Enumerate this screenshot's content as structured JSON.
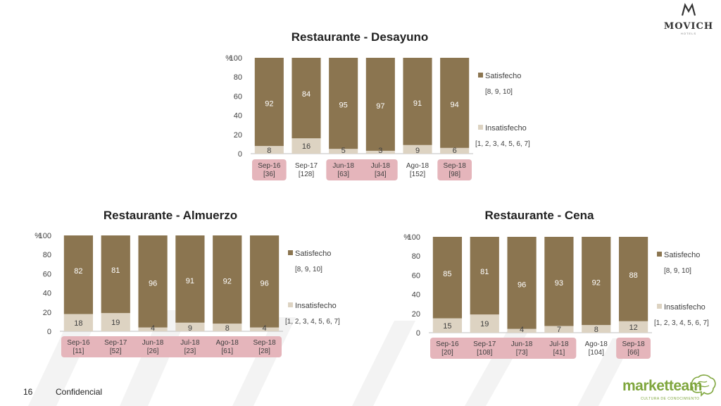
{
  "brand": {
    "name": "MOVICH",
    "subtitle": "HOTELS"
  },
  "footer": {
    "page_number": "16",
    "confidential": "Confidencial"
  },
  "partner": {
    "name": "marketteam",
    "tagline": "CULTURA DE CONOCIMIENTO"
  },
  "colors": {
    "satisfied": "#8b7550",
    "unsatisfied": "#ddd3c2",
    "highlight": "#e5b5bb"
  },
  "legend_labels": {
    "satisfied": "Satisfecho",
    "satisfied_range": "[8, 9, 10]",
    "unsatisfied": "Insatisfecho",
    "unsatisfied_range": "[1, 2, 3, 4, 5, 6, 7]"
  },
  "chart_data": [
    {
      "type": "bar",
      "stacked": true,
      "title": "Restaurante - Desayuno",
      "y_unit": "%",
      "ylim": [
        0,
        100
      ],
      "yticks": [
        0,
        20,
        40,
        60,
        80,
        100
      ],
      "categories": [
        "Sep-16",
        "Sep-17",
        "Jun-18",
        "Jul-18",
        "Ago-18",
        "Sep-18"
      ],
      "sample_sizes": [
        "[36]",
        "[128]",
        "[63]",
        "[34]",
        "[152]",
        "[98]"
      ],
      "highlighted": [
        "Sep-16",
        "Jun-18",
        "Jul-18",
        "Sep-18"
      ],
      "series": [
        {
          "name": "Insatisfecho",
          "values": [
            8,
            16,
            5,
            3,
            9,
            6
          ]
        },
        {
          "name": "Satisfecho",
          "values": [
            92,
            84,
            95,
            97,
            91,
            94
          ]
        }
      ],
      "legend": "right"
    },
    {
      "type": "bar",
      "stacked": true,
      "title": "Restaurante - Almuerzo",
      "y_unit": "%",
      "ylim": [
        0,
        100
      ],
      "yticks": [
        0,
        20,
        40,
        60,
        80,
        100
      ],
      "categories": [
        "Sep-16",
        "Sep-17",
        "Jun-18",
        "Jul-18",
        "Ago-18",
        "Sep-18"
      ],
      "sample_sizes": [
        "[11]",
        "[52]",
        "[26]",
        "[23]",
        "[61]",
        "[28]"
      ],
      "highlighted": [
        "Sep-16",
        "Sep-17",
        "Jun-18",
        "Jul-18",
        "Ago-18",
        "Sep-18"
      ],
      "series": [
        {
          "name": "Insatisfecho",
          "values": [
            18,
            19,
            4,
            9,
            8,
            4
          ]
        },
        {
          "name": "Satisfecho",
          "values": [
            82,
            81,
            96,
            91,
            92,
            96
          ]
        }
      ],
      "legend": "right"
    },
    {
      "type": "bar",
      "stacked": true,
      "title": "Restaurante - Cena",
      "y_unit": "%",
      "ylim": [
        0,
        100
      ],
      "yticks": [
        0,
        20,
        40,
        60,
        80,
        100
      ],
      "categories": [
        "Sep-16",
        "Sep-17",
        "Jun-18",
        "Jul-18",
        "Ago-18",
        "Sep-18"
      ],
      "sample_sizes": [
        "[20]",
        "[108]",
        "[73]",
        "[41]",
        "[104]",
        "[66]"
      ],
      "highlighted": [
        "Sep-16",
        "Sep-17",
        "Jun-18",
        "Jul-18",
        "Sep-18"
      ],
      "series": [
        {
          "name": "Insatisfecho",
          "values": [
            15,
            19,
            4,
            7,
            8,
            12
          ]
        },
        {
          "name": "Satisfecho",
          "values": [
            85,
            81,
            96,
            93,
            92,
            88
          ]
        }
      ],
      "legend": "right"
    }
  ]
}
